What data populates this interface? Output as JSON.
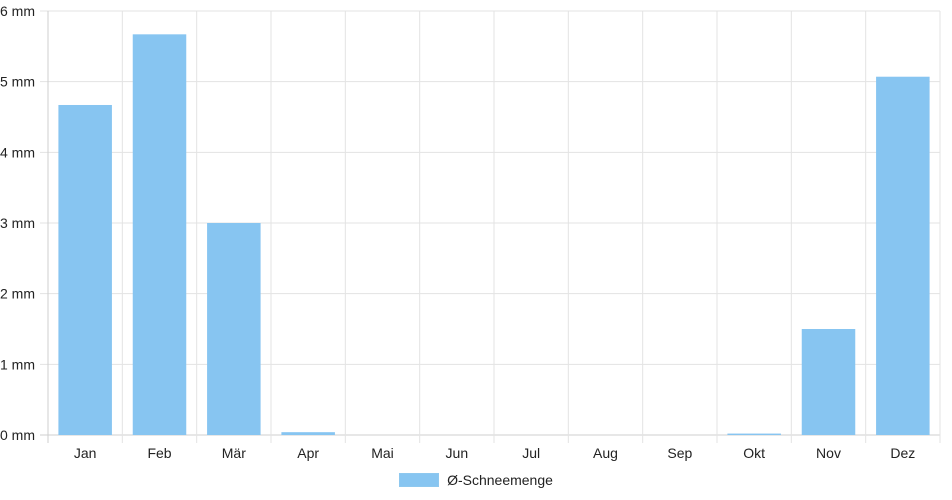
{
  "chart_data": {
    "type": "bar",
    "categories": [
      "Jan",
      "Feb",
      "Mär",
      "Apr",
      "Mai",
      "Jun",
      "Jul",
      "Aug",
      "Sep",
      "Okt",
      "Nov",
      "Dez"
    ],
    "series": [
      {
        "name": "Ø-Schneemenge",
        "values": [
          4.67,
          5.67,
          3.0,
          0.04,
          0,
          0,
          0,
          0,
          0,
          0.02,
          1.5,
          5.07
        ]
      }
    ],
    "yticks": [
      "0 mm",
      "1 mm",
      "2 mm",
      "3 mm",
      "4 mm",
      "5 mm",
      "6 mm"
    ],
    "ylim": [
      0,
      6
    ],
    "grid": true,
    "legend_position": "bottom",
    "colors": {
      "bar": "#87c5f1",
      "grid": "#e3e3e3",
      "axis": "#cfcfcf"
    }
  }
}
